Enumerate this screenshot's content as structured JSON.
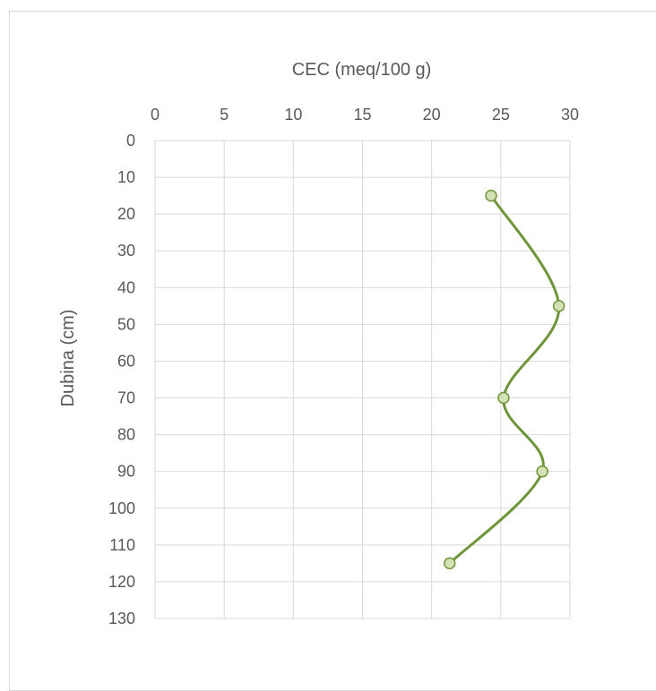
{
  "chart_data": {
    "type": "line",
    "x_axis_position": "top",
    "y_axis_reversed": true,
    "xlabel": "CEC (meq/100 g)",
    "ylabel": "Dubina (cm)",
    "xlim": [
      0,
      30
    ],
    "ylim": [
      0,
      130
    ],
    "x_ticks": [
      "0",
      "5",
      "10",
      "15",
      "20",
      "25",
      "30"
    ],
    "y_ticks": [
      "0",
      "10",
      "20",
      "30",
      "40",
      "50",
      "60",
      "70",
      "80",
      "90",
      "100",
      "110",
      "120",
      "130"
    ],
    "grid": true,
    "smooth": true,
    "series": [
      {
        "color": "#70943a",
        "marker_fill": "#d3e2b5",
        "points": [
          {
            "x": 24.3,
            "y": 15
          },
          {
            "x": 29.2,
            "y": 45
          },
          {
            "x": 25.2,
            "y": 70
          },
          {
            "x": 28.0,
            "y": 90
          },
          {
            "x": 21.3,
            "y": 115
          }
        ]
      }
    ]
  }
}
